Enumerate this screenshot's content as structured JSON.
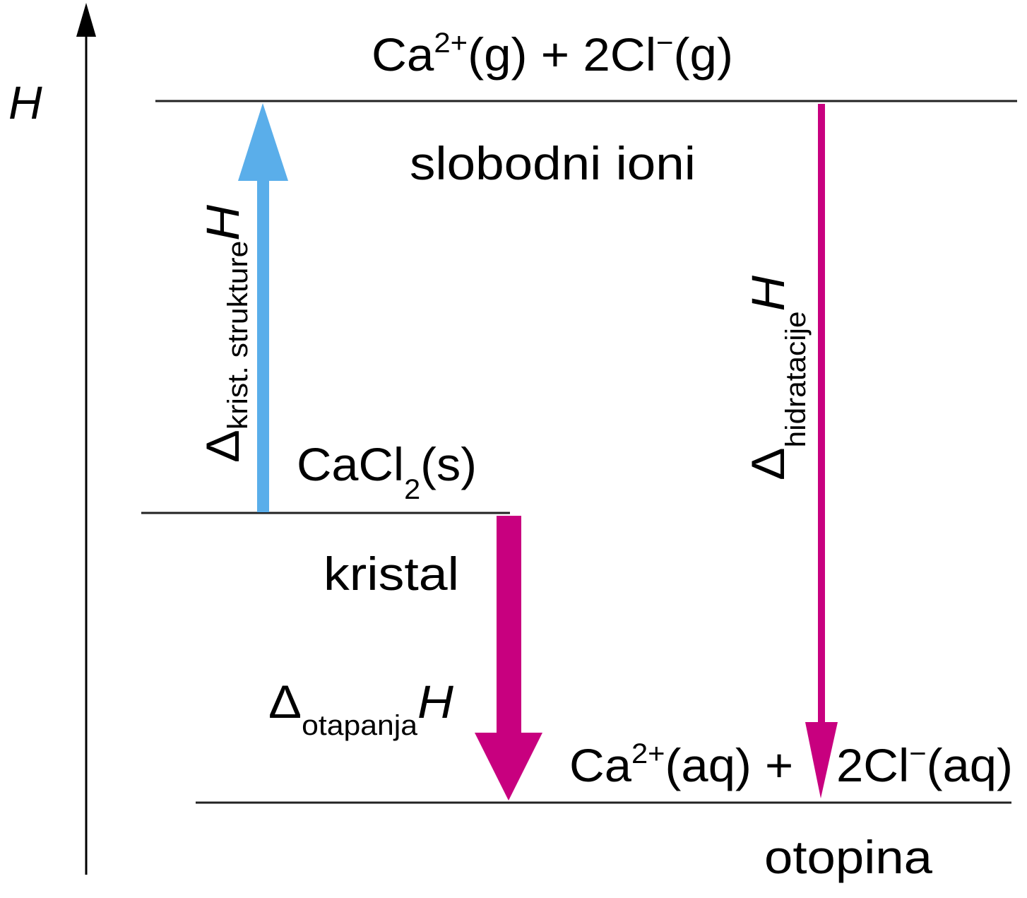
{
  "axis": {
    "label": "H"
  },
  "levels": {
    "gas": {
      "formula_ca": "Ca",
      "charge_ca": "2+",
      "state_ca": "(g) + 2Cl",
      "charge_cl": "−",
      "state_cl": "(g)",
      "caption": "slobodni ioni"
    },
    "solid": {
      "formula": "CaCl",
      "subscript": "2",
      "state": "(s)",
      "caption": "kristal"
    },
    "aqueous": {
      "formula_ca": "Ca",
      "charge_ca": "2+",
      "state_ca": "(aq) + ",
      "formula_cl": "2Cl",
      "charge_cl": "−",
      "state_cl": "(aq)",
      "caption": "otopina"
    }
  },
  "arrows": {
    "lattice": {
      "delta": "Δ",
      "subscript": "krist. strukture",
      "symbol": "H",
      "color": "#5aaeea"
    },
    "solution": {
      "delta": "Δ",
      "subscript": "otapanja",
      "symbol": "H",
      "color": "#c8007f"
    },
    "hydration": {
      "delta": "Δ",
      "subscript": "hidratacije",
      "symbol": "H",
      "color": "#c8007f"
    }
  }
}
